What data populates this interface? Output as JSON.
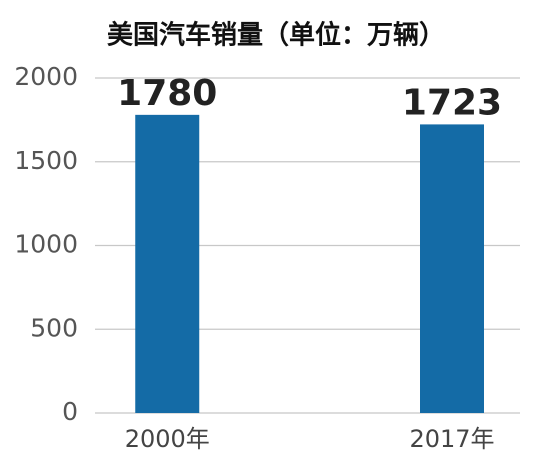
{
  "chart_data": {
    "type": "bar",
    "title": "美国汽车销量（单位：万辆）",
    "categories": [
      "2000年",
      "2017年"
    ],
    "values": [
      1780,
      1723
    ],
    "color": "#146ba6",
    "ylim": [
      0,
      2000
    ],
    "yticks": [
      0,
      500,
      1000,
      1500,
      2000
    ],
    "grid": true
  }
}
